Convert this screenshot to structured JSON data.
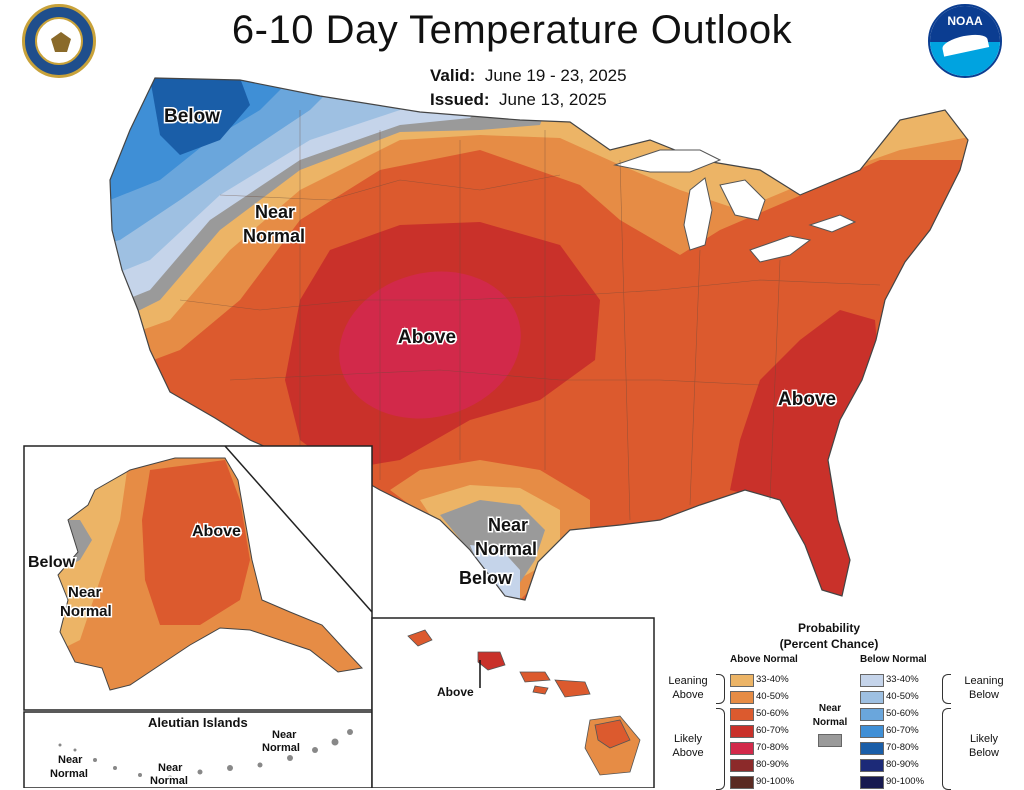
{
  "header": {
    "title": "6-10 Day Temperature Outlook",
    "valid_label": "Valid:",
    "valid_dates": "June 19 - 23, 2025",
    "issued_label": "Issued:",
    "issued_date": "June 13, 2025",
    "noaa_logo_text": "NOAA"
  },
  "map_labels": {
    "pnw_below": "Below",
    "pnw_near_1": "Near",
    "pnw_near_2": "Normal",
    "central_above": "Above",
    "southeast_above": "Above",
    "texas_near_1": "Near",
    "texas_near_2": "Normal",
    "texas_below": "Below",
    "alaska_above": "Above",
    "alaska_below": "Below",
    "alaska_near_1": "Near",
    "alaska_near_2": "Normal",
    "aleutian_title": "Aleutian Islands",
    "aleutian_near_a1": "Near",
    "aleutian_near_a2": "Normal",
    "aleutian_near_b1": "Near",
    "aleutian_near_b2": "Normal",
    "aleutian_near_c1": "Near",
    "aleutian_near_c2": "Normal",
    "hawaii_above": "Above"
  },
  "legend": {
    "title_line1": "Probability",
    "title_line2": "(Percent Chance)",
    "above_heading": "Above Normal",
    "below_heading": "Below Normal",
    "leaning_above_1": "Leaning",
    "leaning_above_2": "Above",
    "likely_above_1": "Likely",
    "likely_above_2": "Above",
    "leaning_below_1": "Leaning",
    "leaning_below_2": "Below",
    "likely_below_1": "Likely",
    "likely_below_2": "Below",
    "near_normal_1": "Near",
    "near_normal_2": "Normal",
    "near_normal_color": "#9a9a9a",
    "above_items": [
      {
        "label": "33-40%",
        "color": "#ecb466"
      },
      {
        "label": "40-50%",
        "color": "#e68c45"
      },
      {
        "label": "50-60%",
        "color": "#dc5a2e"
      },
      {
        "label": "60-70%",
        "color": "#c9312a"
      },
      {
        "label": "70-80%",
        "color": "#d2294a"
      },
      {
        "label": "80-90%",
        "color": "#8c2a2a"
      },
      {
        "label": "90-100%",
        "color": "#5a2a22"
      }
    ],
    "below_items": [
      {
        "label": "33-40%",
        "color": "#c5d4ea"
      },
      {
        "label": "40-50%",
        "color": "#9ec0e2"
      },
      {
        "label": "50-60%",
        "color": "#6aa6dc"
      },
      {
        "label": "60-70%",
        "color": "#3f8fd6"
      },
      {
        "label": "70-80%",
        "color": "#1a5ea8"
      },
      {
        "label": "80-90%",
        "color": "#1c2a78"
      },
      {
        "label": "90-100%",
        "color": "#171a50"
      }
    ]
  }
}
